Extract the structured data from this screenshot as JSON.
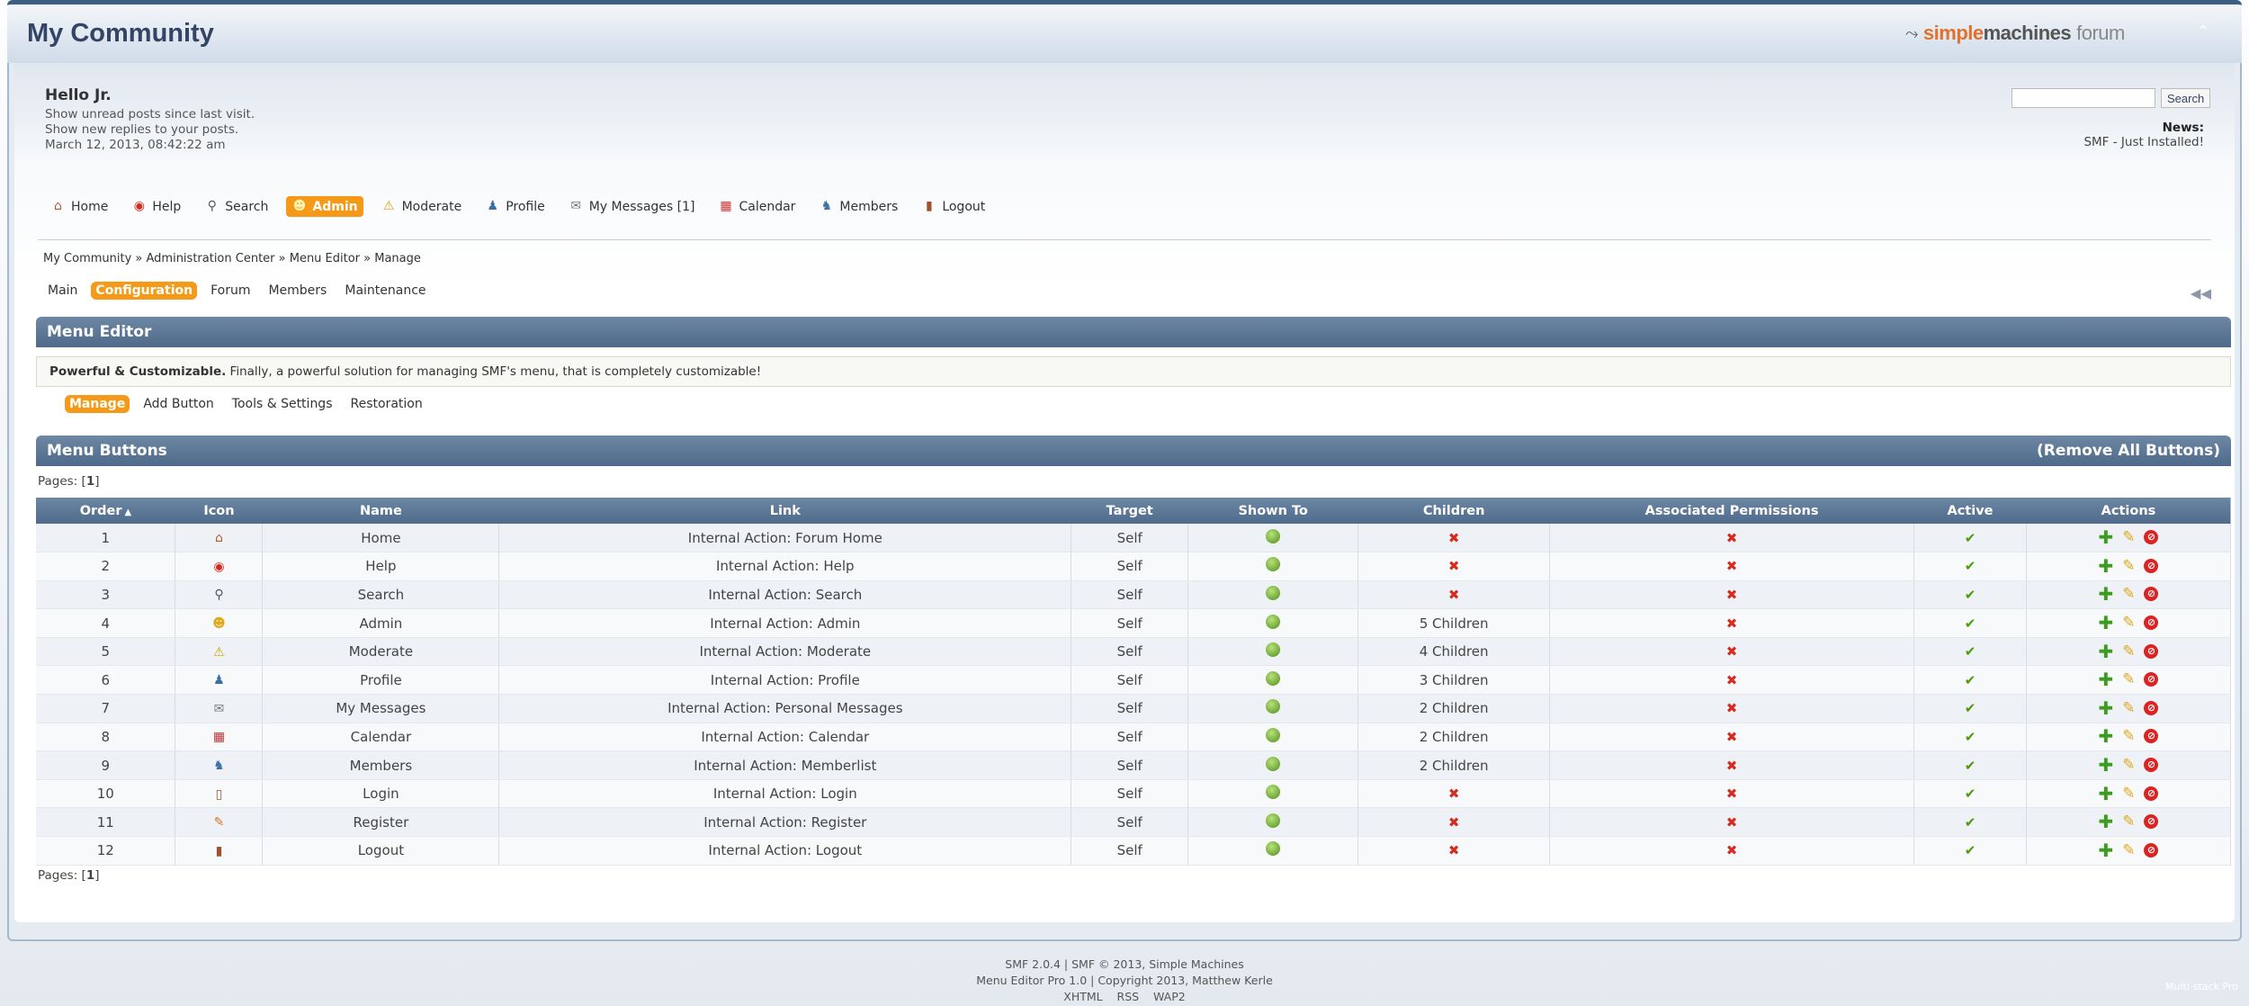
{
  "header": {
    "forum_title": "My Community",
    "logo": {
      "part1": "simple",
      "part2": "machines",
      "part3": "forum"
    }
  },
  "user": {
    "hello": "Hello Jr.",
    "links": [
      "Show unread posts since last visit.",
      "Show new replies to your posts."
    ],
    "datetime": "March 12, 2013, 08:42:22 am"
  },
  "search": {
    "placeholder": "",
    "button": "Search"
  },
  "news": {
    "label": "News:",
    "text": "SMF - Just Installed!"
  },
  "main_menu": [
    {
      "label": "Home",
      "icon": "home-icon",
      "glyph": "⌂",
      "color": "#b05a2a"
    },
    {
      "label": "Help",
      "icon": "help-icon",
      "glyph": "◉",
      "color": "#d62b1f"
    },
    {
      "label": "Search",
      "icon": "search-icon",
      "glyph": "⚲",
      "color": "#556"
    },
    {
      "label": "Admin",
      "icon": "admin-icon",
      "glyph": "☻",
      "color": "#f5d040",
      "active": true
    },
    {
      "label": "Moderate",
      "icon": "warning-icon",
      "glyph": "⚠",
      "color": "#d9a400"
    },
    {
      "label": "Profile",
      "icon": "user-icon",
      "glyph": "♟",
      "color": "#3b6ea5"
    },
    {
      "label": "My Messages [1]",
      "icon": "envelope-icon",
      "glyph": "✉",
      "color": "#777"
    },
    {
      "label": "Calendar",
      "icon": "calendar-icon",
      "glyph": "▦",
      "color": "#c33"
    },
    {
      "label": "Members",
      "icon": "members-icon",
      "glyph": "♞",
      "color": "#3b6ea5"
    },
    {
      "label": "Logout",
      "icon": "door-icon",
      "glyph": "▮",
      "color": "#a0522d"
    }
  ],
  "breadcrumb": "My Community » Administration Center » Menu Editor » Manage",
  "admin_tabs": [
    "Main",
    "Configuration",
    "Forum",
    "Members",
    "Maintenance"
  ],
  "admin_active_tab": "Configuration",
  "menu_editor": {
    "title": "Menu Editor",
    "intro_bold": "Powerful & Customizable.",
    "intro_text": " Finally, a powerful solution for managing SMF's menu, that is completely customizable!"
  },
  "editor_tabs": [
    "Manage",
    "Add Button",
    "Tools & Settings",
    "Restoration"
  ],
  "editor_active_tab": "Manage",
  "buttons_section": {
    "title": "Menu Buttons",
    "remove_all": "(Remove All Buttons)"
  },
  "pages_label": "Pages: [",
  "pages_num": "1",
  "pages_end": "]",
  "table": {
    "columns": [
      "Order",
      "Icon",
      "Name",
      "Link",
      "Target",
      "Shown To",
      "Children",
      "Associated Permissions",
      "Active",
      "Actions"
    ],
    "sort_indicator": "▲",
    "rows": [
      {
        "order": "1",
        "icon": "home-icon",
        "glyph": "⌂",
        "color": "#b05a2a",
        "name": "Home",
        "link": "Internal Action: Forum Home",
        "target": "Self",
        "children": ""
      },
      {
        "order": "2",
        "icon": "help-icon",
        "glyph": "◉",
        "color": "#d62b1f",
        "name": "Help",
        "link": "Internal Action: Help",
        "target": "Self",
        "children": ""
      },
      {
        "order": "3",
        "icon": "search-icon",
        "glyph": "⚲",
        "color": "#556",
        "name": "Search",
        "link": "Internal Action: Search",
        "target": "Self",
        "children": ""
      },
      {
        "order": "4",
        "icon": "admin-icon",
        "glyph": "☻",
        "color": "#e0a91a",
        "name": "Admin",
        "link": "Internal Action: Admin",
        "target": "Self",
        "children": "5 Children"
      },
      {
        "order": "5",
        "icon": "warning-icon",
        "glyph": "⚠",
        "color": "#d9a400",
        "name": "Moderate",
        "link": "Internal Action: Moderate",
        "target": "Self",
        "children": "4 Children"
      },
      {
        "order": "6",
        "icon": "user-icon",
        "glyph": "♟",
        "color": "#3b6ea5",
        "name": "Profile",
        "link": "Internal Action: Profile",
        "target": "Self",
        "children": "3 Children"
      },
      {
        "order": "7",
        "icon": "envelope-icon",
        "glyph": "✉",
        "color": "#777",
        "name": "My Messages",
        "link": "Internal Action: Personal Messages",
        "target": "Self",
        "children": "2 Children"
      },
      {
        "order": "8",
        "icon": "calendar-icon",
        "glyph": "▦",
        "color": "#c33",
        "name": "Calendar",
        "link": "Internal Action: Calendar",
        "target": "Self",
        "children": "2 Children"
      },
      {
        "order": "9",
        "icon": "members-icon",
        "glyph": "♞",
        "color": "#3b6ea5",
        "name": "Members",
        "link": "Internal Action: Memberlist",
        "target": "Self",
        "children": "2 Children"
      },
      {
        "order": "10",
        "icon": "login-icon",
        "glyph": "▯",
        "color": "#a0522d",
        "name": "Login",
        "link": "Internal Action: Login",
        "target": "Self",
        "children": ""
      },
      {
        "order": "11",
        "icon": "register-icon",
        "glyph": "✎",
        "color": "#c8782a",
        "name": "Register",
        "link": "Internal Action: Register",
        "target": "Self",
        "children": ""
      },
      {
        "order": "12",
        "icon": "door-icon",
        "glyph": "▮",
        "color": "#a0522d",
        "name": "Logout",
        "link": "Internal Action: Logout",
        "target": "Self",
        "children": ""
      }
    ]
  },
  "footer": {
    "line1": "SMF 2.0.4 | SMF © 2013, Simple Machines",
    "line2": "Menu Editor Pro 1.0 | Copyright 2013, Matthew Kerle",
    "links": [
      "XHTML",
      "RSS",
      "WAP2"
    ]
  },
  "watermark": "Multi-stack Pro"
}
